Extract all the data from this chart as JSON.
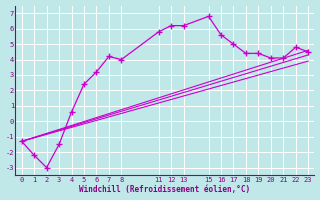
{
  "xlabel": "Windchill (Refroidissement éolien,°C)",
  "bg_color": "#c0e8e8",
  "line_color": "#cc00cc",
  "grid_color": "#a0d0d0",
  "grid_white": "#ffffff",
  "xtick_vals": [
    0,
    1,
    2,
    3,
    4,
    5,
    6,
    7,
    8,
    11,
    12,
    13,
    15,
    16,
    17,
    18,
    19,
    20,
    21,
    22,
    23
  ],
  "xtick_labels": [
    "0",
    "1",
    "2",
    "3",
    "4",
    "5",
    "6",
    "7",
    "8",
    "11",
    "12",
    "13",
    "15",
    "16",
    "17",
    "18",
    "19",
    "20",
    "21",
    "22",
    "23"
  ],
  "xlim": [
    -0.5,
    23.5
  ],
  "ylim": [
    -3.5,
    7.5
  ],
  "ytick_vals": [
    -3,
    -2,
    -1,
    0,
    1,
    2,
    3,
    4,
    5,
    6,
    7
  ],
  "ytick_labels": [
    "-3",
    "-2",
    "-1",
    "0",
    "1",
    "2",
    "3",
    "4",
    "5",
    "6",
    "7"
  ],
  "curve_x": [
    0,
    1,
    2,
    3,
    4,
    5,
    6,
    7,
    8,
    11,
    12,
    13,
    15,
    16,
    17,
    18,
    19,
    20,
    21,
    22,
    23
  ],
  "curve_y": [
    -1.3,
    -2.2,
    -3.0,
    -1.5,
    0.6,
    2.4,
    3.2,
    4.2,
    4.0,
    5.8,
    6.2,
    6.2,
    6.8,
    5.6,
    5.0,
    4.4,
    4.4,
    4.1,
    4.1,
    4.8,
    4.5
  ],
  "trend1_x": [
    0,
    23
  ],
  "trend1_y": [
    -1.3,
    4.3
  ],
  "trend2_x": [
    0,
    23
  ],
  "trend2_y": [
    -1.3,
    4.6
  ],
  "trend3_x": [
    0,
    23
  ],
  "trend3_y": [
    -1.3,
    3.9
  ]
}
